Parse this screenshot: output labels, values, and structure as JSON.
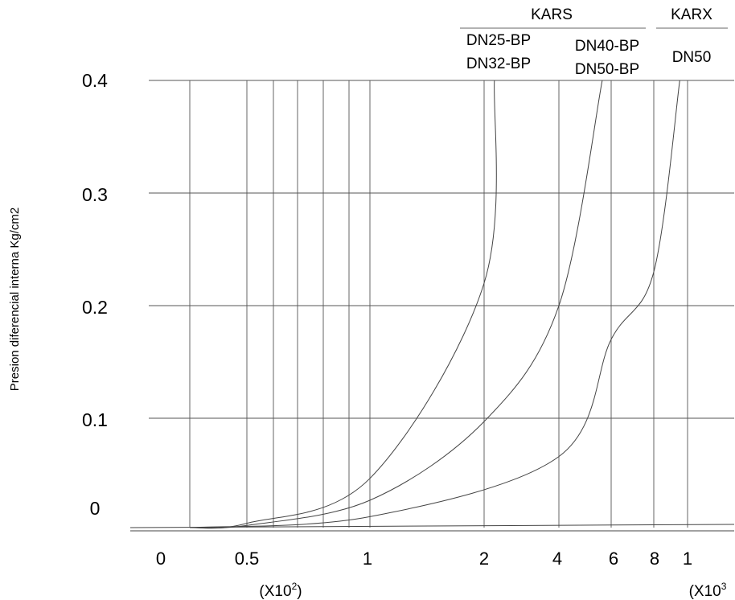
{
  "chart_data": {
    "type": "line",
    "ylabel": "Presion diferencial interna Kg/cm2",
    "ylim": [
      0,
      0.4
    ],
    "y_ticks": [
      "0",
      "0.1",
      "0.2",
      "0.3",
      "0.4"
    ],
    "x_ticks": [
      "0",
      "0.5",
      "1",
      "2",
      "4",
      "6",
      "8",
      "1"
    ],
    "x_units": [
      {
        "base": "(X10",
        "exp": "2",
        "close": ")"
      },
      {
        "base": "(X10",
        "exp": "3",
        "close": ""
      }
    ],
    "groups": [
      {
        "label": "KARS"
      },
      {
        "label": "KARX"
      }
    ],
    "series_labels": [
      {
        "lines": [
          "DN25-BP",
          "DN32-BP"
        ]
      },
      {
        "lines": [
          "DN40-BP",
          "DN50-BP"
        ]
      },
      {
        "lines": [
          "DN50"
        ]
      }
    ],
    "series": [
      {
        "name": "DN25-BP / DN32-BP",
        "x": [
          20,
          50,
          100,
          200,
          220
        ],
        "y": [
          0,
          0.004,
          0.045,
          0.22,
          0.4
        ]
      },
      {
        "name": "DN40-BP / DN50-BP",
        "x": [
          20,
          50,
          100,
          200,
          400,
          560
        ],
        "y": [
          0,
          0.002,
          0.025,
          0.097,
          0.2,
          0.4
        ]
      },
      {
        "name": "DN50",
        "x": [
          20,
          100,
          400,
          600,
          800,
          950
        ],
        "y": [
          0,
          0.01,
          0.065,
          0.17,
          0.23,
          0.4
        ]
      }
    ],
    "grid": true
  }
}
